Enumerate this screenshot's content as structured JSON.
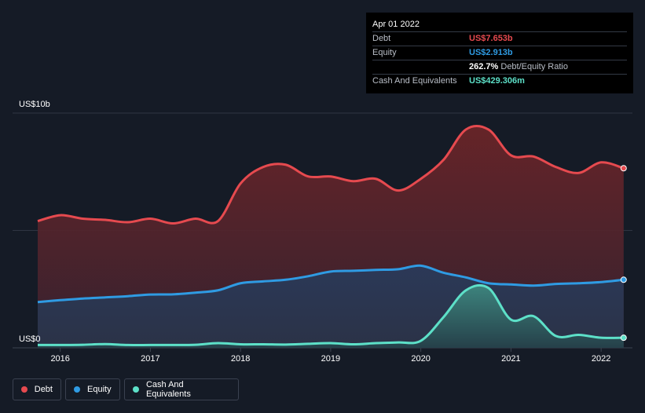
{
  "tooltip": {
    "date": "Apr 01 2022",
    "debt_label": "Debt",
    "debt_value": "US$7.653b",
    "equity_label": "Equity",
    "equity_value": "US$2.913b",
    "ratio_value": "262.7%",
    "ratio_label": "Debt/Equity Ratio",
    "cash_label": "Cash And Equivalents",
    "cash_value": "US$429.306m"
  },
  "legend": {
    "debt": "Debt",
    "equity": "Equity",
    "cash": "Cash And Equivalents"
  },
  "colors": {
    "debt": "#e64a4f",
    "equity": "#2f9be3",
    "cash": "#5de0c8",
    "background": "#151b26"
  },
  "chart_data": {
    "type": "area",
    "y_top_label": "US$10b",
    "y_bottom_label": "US$0",
    "ylim": [
      0,
      10
    ],
    "xlim": [
      2015.75,
      2022.33
    ],
    "x_ticks": [
      "2016",
      "2017",
      "2018",
      "2019",
      "2020",
      "2021",
      "2022"
    ],
    "x_tick_values": [
      2016,
      2017,
      2018,
      2019,
      2020,
      2021,
      2022
    ],
    "grid": true,
    "legend_position": "bottom-left",
    "series": [
      {
        "name": "Debt",
        "x": [
          2015.75,
          2016.0,
          2016.25,
          2016.5,
          2016.75,
          2017.0,
          2017.25,
          2017.5,
          2017.75,
          2018.0,
          2018.25,
          2018.5,
          2018.75,
          2019.0,
          2019.25,
          2019.5,
          2019.75,
          2020.0,
          2020.25,
          2020.5,
          2020.75,
          2021.0,
          2021.25,
          2021.5,
          2021.75,
          2022.0,
          2022.25
        ],
        "values": [
          5.4,
          5.65,
          5.5,
          5.45,
          5.35,
          5.5,
          5.3,
          5.5,
          5.4,
          7.0,
          7.7,
          7.8,
          7.3,
          7.3,
          7.1,
          7.2,
          6.7,
          7.2,
          8.0,
          9.3,
          9.3,
          8.2,
          8.15,
          7.7,
          7.45,
          7.9,
          7.65
        ]
      },
      {
        "name": "Equity",
        "x": [
          2015.75,
          2016.0,
          2016.25,
          2016.5,
          2016.75,
          2017.0,
          2017.25,
          2017.5,
          2017.75,
          2018.0,
          2018.25,
          2018.5,
          2018.75,
          2019.0,
          2019.25,
          2019.5,
          2019.75,
          2020.0,
          2020.25,
          2020.5,
          2020.75,
          2021.0,
          2021.25,
          2021.5,
          2021.75,
          2022.0,
          2022.25
        ],
        "values": [
          1.95,
          2.03,
          2.1,
          2.15,
          2.2,
          2.27,
          2.28,
          2.35,
          2.45,
          2.75,
          2.83,
          2.9,
          3.05,
          3.25,
          3.28,
          3.32,
          3.35,
          3.5,
          3.2,
          3.0,
          2.75,
          2.7,
          2.65,
          2.72,
          2.75,
          2.8,
          2.9
        ]
      },
      {
        "name": "Cash And Equivalents",
        "x": [
          2015.75,
          2016.0,
          2016.25,
          2016.5,
          2016.75,
          2017.0,
          2017.25,
          2017.5,
          2017.75,
          2018.0,
          2018.25,
          2018.5,
          2018.75,
          2019.0,
          2019.25,
          2019.5,
          2019.75,
          2020.0,
          2020.25,
          2020.5,
          2020.75,
          2021.0,
          2021.25,
          2021.5,
          2021.75,
          2022.0,
          2022.25
        ],
        "values": [
          0.12,
          0.12,
          0.13,
          0.16,
          0.12,
          0.12,
          0.12,
          0.13,
          0.2,
          0.15,
          0.15,
          0.14,
          0.17,
          0.2,
          0.15,
          0.2,
          0.23,
          0.3,
          1.3,
          2.45,
          2.55,
          1.2,
          1.35,
          0.5,
          0.55,
          0.43,
          0.43
        ]
      }
    ]
  }
}
